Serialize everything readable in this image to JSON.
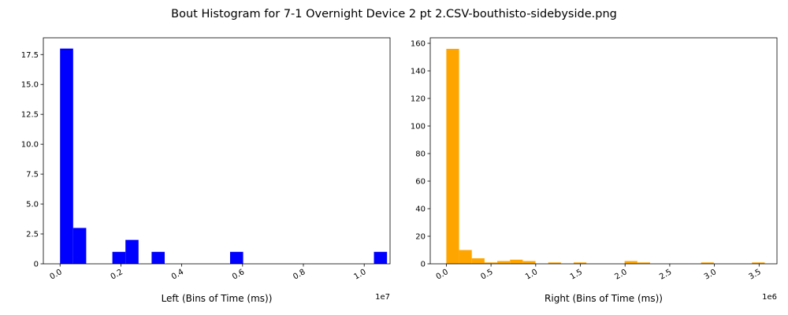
{
  "figure": {
    "title": "Bout Histogram for 7-1 Overnight Device 2 pt 2.CSV-bouthisto-sidebyside.png"
  },
  "chart_data": [
    {
      "type": "bar",
      "name": "left-histogram",
      "xlabel": "Left (Bins of Time (ms))",
      "ylabel": "",
      "x_offset_label": "1e7",
      "x_scale": 10000000,
      "color": "#0000ff",
      "xlim": [
        -0.055,
        1.085
      ],
      "ylim": [
        0,
        18.9
      ],
      "xticks": [
        0.0,
        0.2,
        0.4,
        0.6,
        0.8,
        1.0
      ],
      "xtick_labels": [
        "0.0",
        "0.2",
        "0.4",
        "0.6",
        "0.8",
        "1.0"
      ],
      "yticks": [
        0,
        2.5,
        5.0,
        7.5,
        10.0,
        12.5,
        15.0,
        17.5
      ],
      "ytick_labels": [
        "0",
        "2.5",
        "5.0",
        "7.5",
        "10.0",
        "12.5",
        "15.0",
        "17.5"
      ],
      "bin_width": 0.043,
      "bins": [
        {
          "x": 0.0,
          "count": 18
        },
        {
          "x": 0.043,
          "count": 3
        },
        {
          "x": 0.172,
          "count": 1
        },
        {
          "x": 0.215,
          "count": 2
        },
        {
          "x": 0.301,
          "count": 1
        },
        {
          "x": 0.559,
          "count": 1
        },
        {
          "x": 1.032,
          "count": 1
        }
      ]
    },
    {
      "type": "bar",
      "name": "right-histogram",
      "xlabel": "Right (Bins of Time (ms))",
      "ylabel": "",
      "x_offset_label": "1e6",
      "x_scale": 1000000,
      "color": "#ffa500",
      "xlim": [
        -0.18,
        3.7
      ],
      "ylim": [
        0,
        164
      ],
      "xticks": [
        0.0,
        0.5,
        1.0,
        1.5,
        2.0,
        2.5,
        3.0,
        3.5
      ],
      "xtick_labels": [
        "0.0",
        "0.5",
        "1.0",
        "1.5",
        "2.0",
        "2.5",
        "3.0",
        "3.5"
      ],
      "yticks": [
        0,
        20,
        40,
        60,
        80,
        100,
        120,
        140,
        160
      ],
      "ytick_labels": [
        "0",
        "20",
        "40",
        "60",
        "80",
        "100",
        "120",
        "140",
        "160"
      ],
      "bin_width": 0.1425,
      "bins": [
        {
          "x": 0.0,
          "count": 156
        },
        {
          "x": 0.1425,
          "count": 10
        },
        {
          "x": 0.285,
          "count": 4
        },
        {
          "x": 0.4275,
          "count": 1
        },
        {
          "x": 0.57,
          "count": 2
        },
        {
          "x": 0.7125,
          "count": 3
        },
        {
          "x": 0.855,
          "count": 2
        },
        {
          "x": 1.14,
          "count": 1
        },
        {
          "x": 1.425,
          "count": 1
        },
        {
          "x": 1.995,
          "count": 2
        },
        {
          "x": 2.1375,
          "count": 1
        },
        {
          "x": 2.85,
          "count": 1
        },
        {
          "x": 3.42,
          "count": 1
        }
      ]
    }
  ]
}
